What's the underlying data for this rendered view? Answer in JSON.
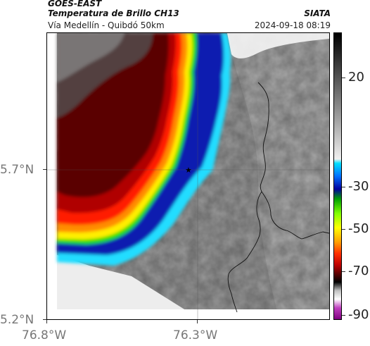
{
  "header": {
    "satellite": "GOES-EAST",
    "product": "Temperatura de Brillo CH13",
    "region": "Vía Medellín - Quibdó 50km",
    "org": "SIATA",
    "datetime": "2024-09-18 08:19"
  },
  "axes": {
    "lat_labels": [
      "5.7°N",
      "5.2°N"
    ],
    "lon_labels": [
      "76.8°W",
      "76.3°W"
    ]
  },
  "colorbar": {
    "tick_labels": [
      "20",
      "-30",
      "-50",
      "-70",
      "-90"
    ],
    "stops": [
      "#f0f0f0",
      "#b0b0b0",
      "#707070",
      "#303030",
      "#101010",
      "#00e0ff",
      "#0080ff",
      "#0000a0",
      "#00a000",
      "#80ff00",
      "#ffff00",
      "#ffa000",
      "#ff3000",
      "#c00000",
      "#400000",
      "#000000",
      "#c0c0c0",
      "#c040c0",
      "#800080"
    ]
  },
  "map": {
    "marker_icon": "star-icon",
    "colors": {
      "cold_core": "#5a0000",
      "red_ring": "#ff1a00",
      "orange_ring": "#ff8c00",
      "yellow_ring": "#ffee00",
      "green_ring": "#22dd00",
      "blue_ring": "#0a1fb0",
      "cyan_ring": "#22ddff",
      "warm_surface": "#9a9a9a",
      "ocean_light": "#e8e8e8",
      "border_line": "#111111"
    }
  }
}
